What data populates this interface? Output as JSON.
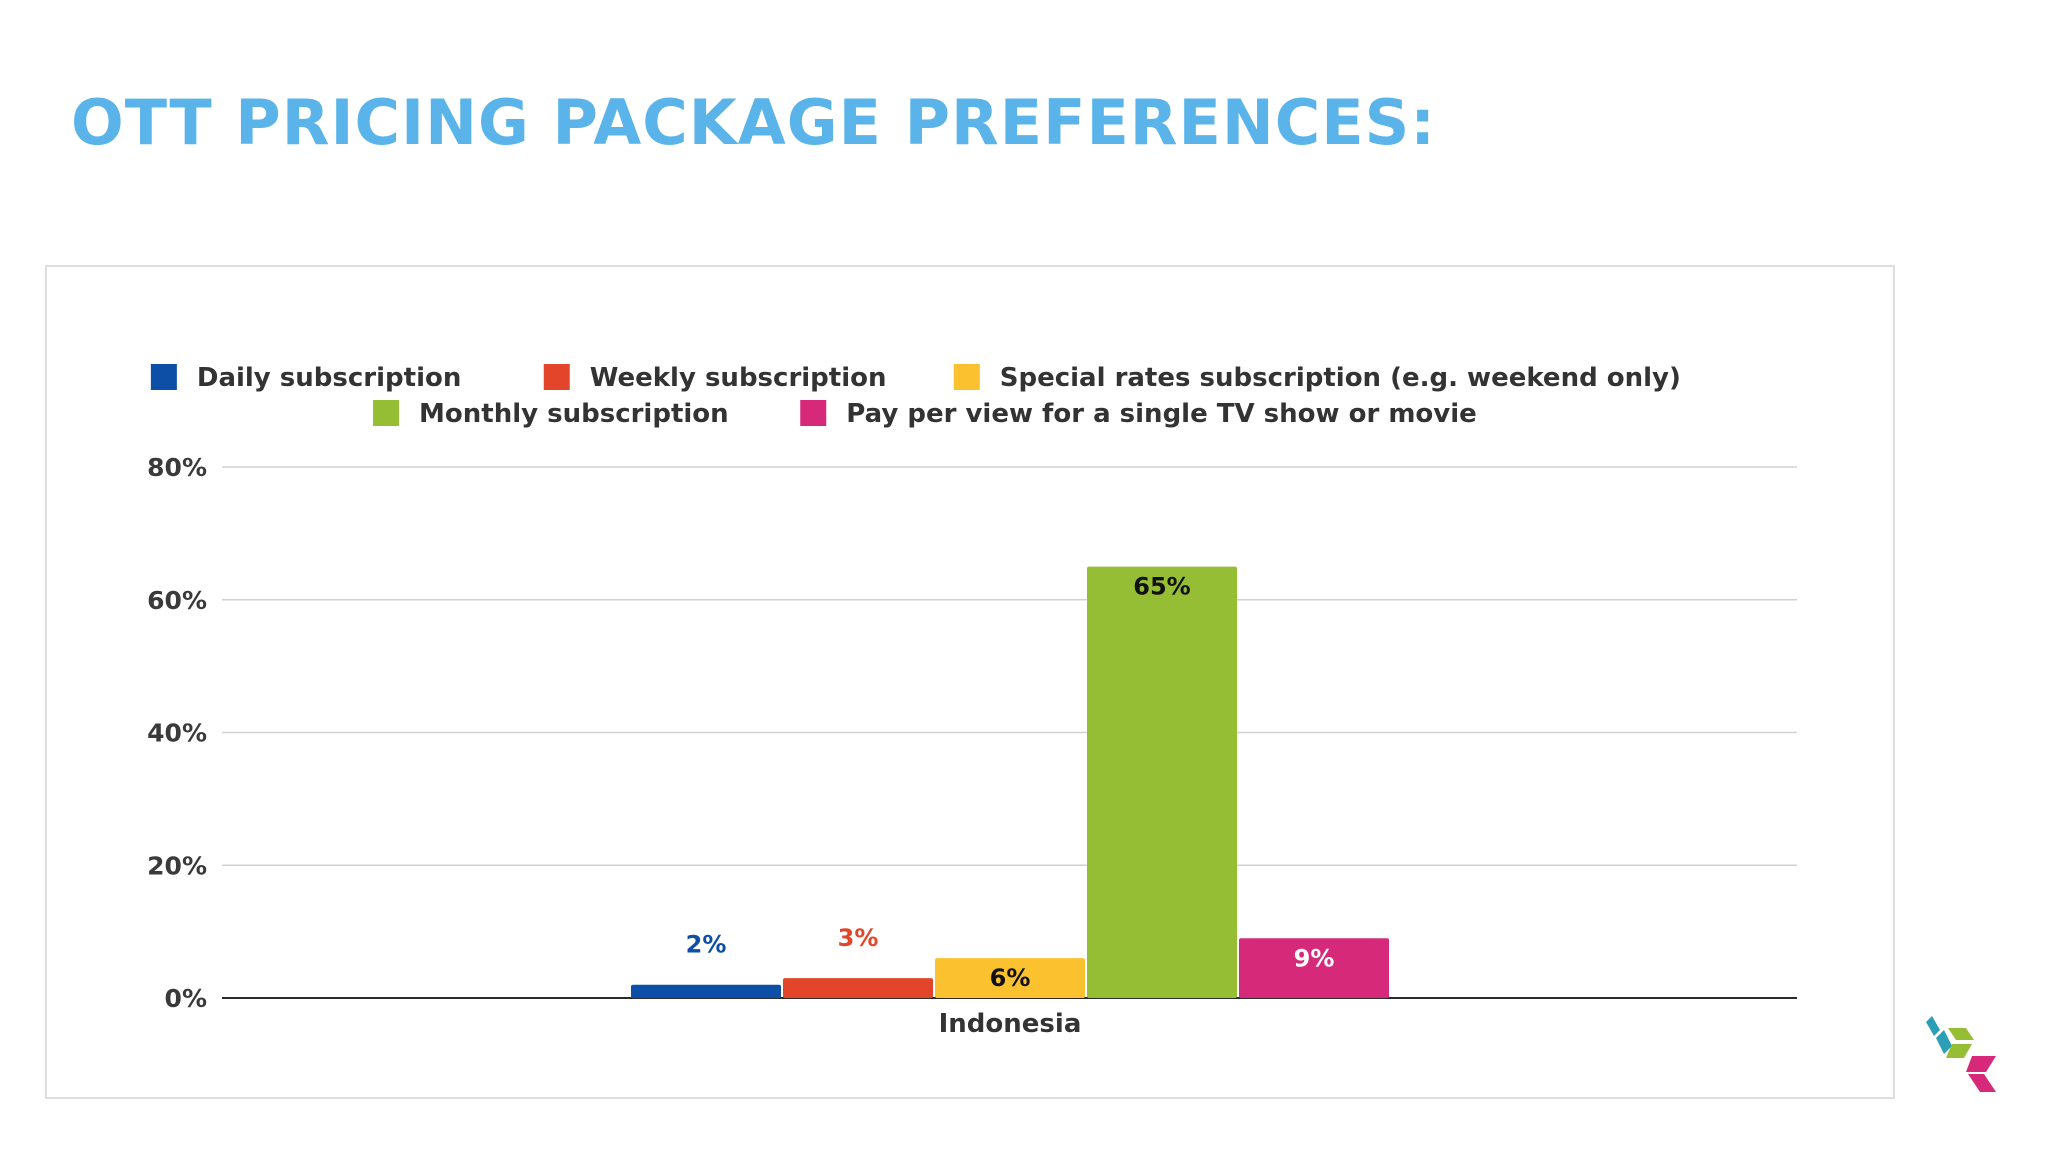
{
  "title": "OTT PRICING PACKAGE PREFERENCES:",
  "chart_data": {
    "type": "bar",
    "categories": [
      "Indonesia"
    ],
    "series": [
      {
        "name": "Daily subscription",
        "values": [
          2
        ],
        "label": "2%",
        "color": "#0d4ea6"
      },
      {
        "name": "Weekly subscription",
        "values": [
          3
        ],
        "label": "3%",
        "color": "#e2452a"
      },
      {
        "name": "Special rates subscription (e.g. weekend only)",
        "values": [
          6
        ],
        "label": "6%",
        "color": "#fbc12f"
      },
      {
        "name": "Monthly subscription",
        "values": [
          65
        ],
        "label": "65%",
        "color": "#96be35"
      },
      {
        "name": "Pay per view for a single TV show or movie",
        "values": [
          9
        ],
        "label": "9%",
        "color": "#d6297a"
      }
    ],
    "y_ticks": [
      "0%",
      "20%",
      "40%",
      "60%",
      "80%"
    ],
    "ylim": [
      0,
      80
    ],
    "legend": "top",
    "grid": true
  },
  "logo": {
    "colors": [
      "#2b9fb6",
      "#96be35",
      "#d6297a"
    ]
  }
}
